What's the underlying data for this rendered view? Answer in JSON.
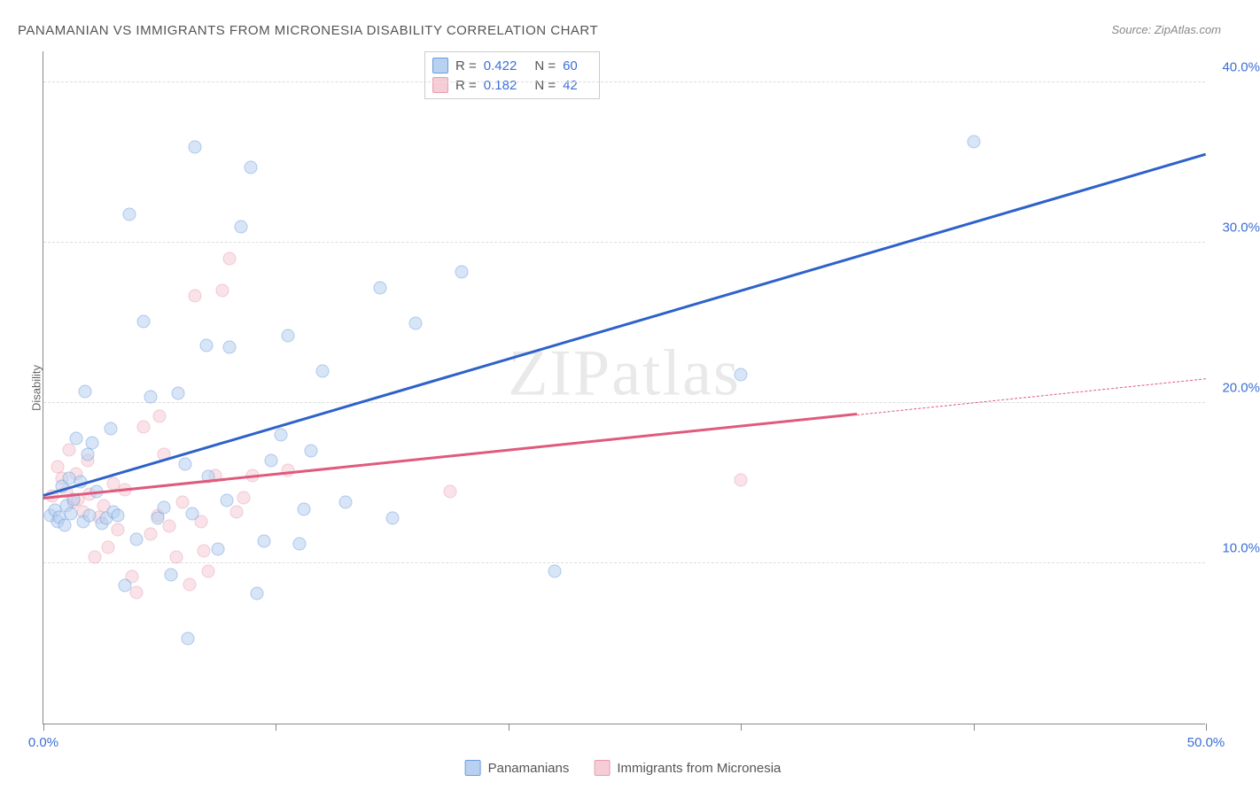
{
  "title": "PANAMANIAN VS IMMIGRANTS FROM MICRONESIA DISABILITY CORRELATION CHART",
  "source": "Source: ZipAtlas.com",
  "ylabel": "Disability",
  "watermark_a": "ZIP",
  "watermark_b": "atlas",
  "chart": {
    "type": "scatter",
    "background_color": "#ffffff",
    "grid_color": "#dddddd",
    "axis_color": "#888888",
    "xlim": [
      0,
      50
    ],
    "ylim": [
      0,
      42
    ],
    "x_ticks": [
      0,
      10,
      20,
      30,
      40,
      50
    ],
    "x_tick_labels": {
      "0": "0.0%",
      "50": "50.0%"
    },
    "y_gridlines": [
      10,
      20,
      30,
      40
    ],
    "y_tick_labels": {
      "10": "10.0%",
      "20": "20.0%",
      "30": "30.0%",
      "40": "40.0%"
    },
    "label_color": "#3b6fd8",
    "label_fontsize": 15
  },
  "series": {
    "panamanians": {
      "label": "Panamanians",
      "fill": "#b8d1f0",
      "stroke": "#6a9be0",
      "line_color": "#2e62c9",
      "r": "0.422",
      "n": "60",
      "trend": {
        "x1": 0,
        "y1": 14.2,
        "x2": 50,
        "y2": 35.5,
        "solid_until_x": 50
      },
      "points": [
        [
          0.3,
          13.0
        ],
        [
          0.5,
          13.3
        ],
        [
          0.6,
          12.6
        ],
        [
          0.7,
          12.9
        ],
        [
          0.8,
          14.8
        ],
        [
          0.9,
          12.4
        ],
        [
          1.0,
          13.6
        ],
        [
          1.1,
          15.3
        ],
        [
          1.2,
          13.1
        ],
        [
          1.3,
          14.0
        ],
        [
          1.4,
          17.8
        ],
        [
          1.6,
          15.1
        ],
        [
          1.7,
          12.6
        ],
        [
          1.8,
          20.7
        ],
        [
          1.9,
          16.8
        ],
        [
          2.0,
          13.0
        ],
        [
          2.1,
          17.5
        ],
        [
          2.3,
          14.5
        ],
        [
          2.5,
          12.5
        ],
        [
          2.7,
          12.8
        ],
        [
          2.9,
          18.4
        ],
        [
          3.0,
          13.2
        ],
        [
          3.2,
          13.0
        ],
        [
          3.5,
          8.6
        ],
        [
          3.7,
          31.8
        ],
        [
          4.0,
          11.5
        ],
        [
          4.3,
          25.1
        ],
        [
          4.6,
          20.4
        ],
        [
          4.9,
          12.8
        ],
        [
          5.2,
          13.5
        ],
        [
          5.5,
          9.3
        ],
        [
          5.8,
          20.6
        ],
        [
          6.1,
          16.2
        ],
        [
          6.2,
          5.3
        ],
        [
          6.4,
          13.1
        ],
        [
          6.5,
          36.0
        ],
        [
          7.0,
          23.6
        ],
        [
          7.1,
          15.4
        ],
        [
          7.5,
          10.9
        ],
        [
          7.9,
          13.9
        ],
        [
          8.0,
          23.5
        ],
        [
          8.5,
          31.0
        ],
        [
          8.9,
          34.7
        ],
        [
          9.2,
          8.1
        ],
        [
          9.5,
          11.4
        ],
        [
          9.8,
          16.4
        ],
        [
          10.2,
          18.0
        ],
        [
          10.5,
          24.2
        ],
        [
          11.0,
          11.2
        ],
        [
          11.2,
          13.4
        ],
        [
          11.5,
          17.0
        ],
        [
          12.0,
          22.0
        ],
        [
          14.5,
          27.2
        ],
        [
          15.0,
          12.8
        ],
        [
          16.0,
          25.0
        ],
        [
          18.0,
          28.2
        ],
        [
          22.0,
          9.5
        ],
        [
          30.0,
          21.8
        ],
        [
          40.0,
          36.3
        ],
        [
          13.0,
          13.8
        ]
      ]
    },
    "micronesia": {
      "label": "Immigrants from Micronesia",
      "fill": "#f6cdd7",
      "stroke": "#e79cb0",
      "line_color": "#e05a7d",
      "r": "0.182",
      "n": "42",
      "trend": {
        "x1": 0,
        "y1": 14.0,
        "x2": 50,
        "y2": 21.5,
        "solid_until_x": 35
      },
      "points": [
        [
          0.4,
          14.2
        ],
        [
          0.6,
          16.0
        ],
        [
          0.8,
          15.3
        ],
        [
          1.0,
          14.5
        ],
        [
          1.1,
          17.1
        ],
        [
          1.3,
          13.8
        ],
        [
          1.4,
          15.6
        ],
        [
          1.5,
          14.0
        ],
        [
          1.7,
          13.2
        ],
        [
          1.9,
          16.4
        ],
        [
          2.0,
          14.3
        ],
        [
          2.2,
          10.4
        ],
        [
          2.4,
          12.9
        ],
        [
          2.6,
          13.6
        ],
        [
          2.8,
          11.0
        ],
        [
          3.0,
          15.0
        ],
        [
          3.2,
          12.1
        ],
        [
          3.5,
          14.6
        ],
        [
          3.8,
          9.2
        ],
        [
          4.0,
          8.2
        ],
        [
          4.3,
          18.5
        ],
        [
          4.6,
          11.8
        ],
        [
          4.9,
          13.0
        ],
        [
          5.0,
          19.2
        ],
        [
          5.4,
          12.3
        ],
        [
          5.7,
          10.4
        ],
        [
          6.0,
          13.8
        ],
        [
          6.3,
          8.7
        ],
        [
          6.5,
          26.7
        ],
        [
          6.8,
          12.6
        ],
        [
          7.1,
          9.5
        ],
        [
          7.4,
          15.5
        ],
        [
          7.7,
          27.0
        ],
        [
          8.0,
          29.0
        ],
        [
          8.3,
          13.2
        ],
        [
          8.6,
          14.1
        ],
        [
          9.0,
          15.5
        ],
        [
          10.5,
          15.8
        ],
        [
          17.5,
          14.5
        ],
        [
          30.0,
          15.2
        ],
        [
          6.9,
          10.8
        ],
        [
          5.2,
          16.8
        ]
      ]
    }
  },
  "legend_stats": {
    "r_label": "R =",
    "n_label": "N ="
  }
}
